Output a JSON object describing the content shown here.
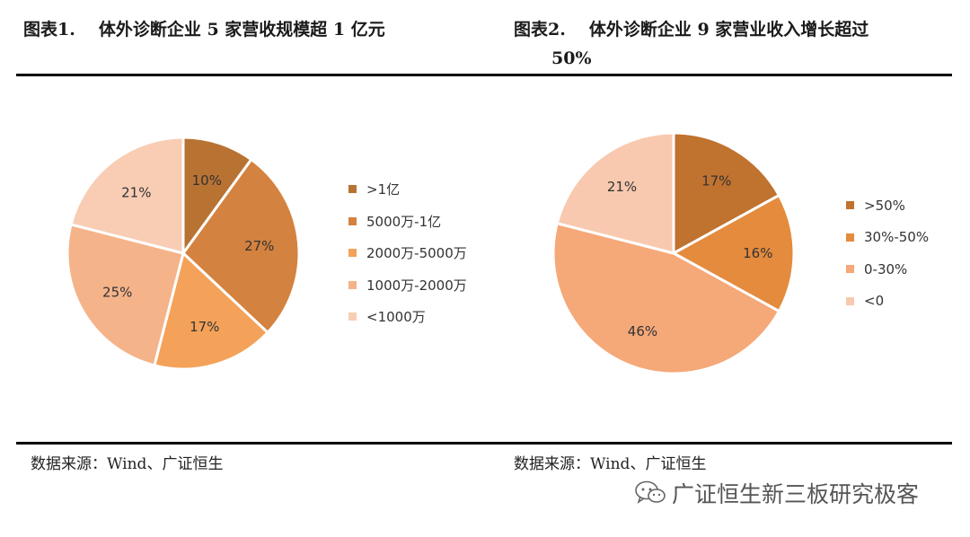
{
  "figure1": {
    "label": "图表1.",
    "title": "体外诊断企业 5 家营收规模超 1 亿元",
    "source": "数据来源：Wind、广证恒生"
  },
  "figure2": {
    "label": "图表2.",
    "title_line1": "体外诊断企业  9  家营业收入增长超过",
    "title_line2": "50%",
    "source": "数据来源：Wind、广证恒生"
  },
  "watermark": {
    "text": "广证恒生新三板研究极客",
    "icon": "wechat-icon"
  },
  "chart_data": [
    {
      "type": "pie",
      "categories": [
        ">1亿",
        "5000万-1亿",
        "2000万-5000万",
        "1000万-2000万",
        "<1000万"
      ],
      "values": [
        10,
        27,
        17,
        25,
        21
      ],
      "value_labels": [
        "10%",
        "27%",
        "17%",
        "25%",
        "21%"
      ],
      "colors": [
        "#b87333",
        "#d4823f",
        "#f4a259",
        "#f5b38a",
        "#f8cdb4"
      ],
      "legend_position": "right"
    },
    {
      "type": "pie",
      "categories": [
        ">50%",
        "30%-50%",
        "0-30%",
        "<0"
      ],
      "values": [
        17,
        16,
        46,
        21
      ],
      "value_labels": [
        "17%",
        "16%",
        "46%",
        "21%"
      ],
      "colors": [
        "#c0722f",
        "#e48b3e",
        "#f5a878",
        "#f8c9ae"
      ],
      "legend_position": "right"
    }
  ]
}
